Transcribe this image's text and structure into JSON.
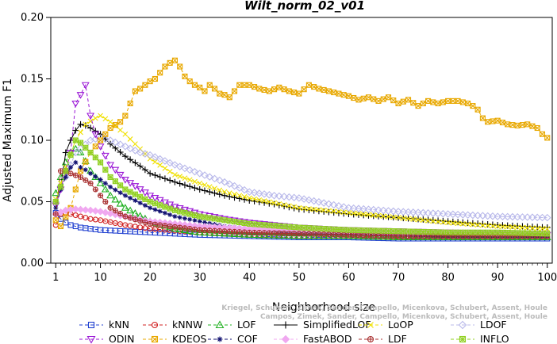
{
  "chart_data": {
    "type": "line",
    "title": "Wilt_norm_02_v01",
    "xlabel": "Neighborhood size",
    "ylabel": "Adjusted Maximum F1",
    "xlim": [
      0,
      101
    ],
    "ylim": [
      0,
      0.2
    ],
    "xticks": [
      1,
      10,
      20,
      30,
      40,
      50,
      60,
      70,
      80,
      90,
      100
    ],
    "yticks": [
      0.0,
      0.05,
      0.1,
      0.15,
      0.2
    ],
    "ytick_labels": [
      "0.00",
      "0.05",
      "0.10",
      "0.15",
      "0.20"
    ],
    "grid": false,
    "legend_position": "bottom",
    "watermark": [
      "Kriegel, Schubert, Zimek, Sander, Campello, Micenkova, Schubert, Assent, Houle",
      "Campos, Zimek, Sander, Campello, Micenkova, Schubert, Assent, Houle"
    ],
    "series": [
      {
        "name": "kNN",
        "color": "#1f3fd0",
        "marker": "square",
        "dash": "4,3",
        "points": [
          [
            1,
            0.041
          ],
          [
            2,
            0.036
          ],
          [
            3,
            0.033
          ],
          [
            4,
            0.031
          ],
          [
            5,
            0.03
          ],
          [
            6,
            0.029
          ],
          [
            8,
            0.028
          ],
          [
            10,
            0.027
          ],
          [
            15,
            0.026
          ],
          [
            20,
            0.025
          ],
          [
            30,
            0.023
          ],
          [
            40,
            0.022
          ],
          [
            50,
            0.021
          ],
          [
            60,
            0.021
          ],
          [
            70,
            0.02
          ],
          [
            80,
            0.02
          ],
          [
            90,
            0.02
          ],
          [
            100,
            0.02
          ]
        ]
      },
      {
        "name": "kNNW",
        "color": "#d02020",
        "marker": "circle",
        "dash": "4,3",
        "points": [
          [
            1,
            0.031
          ],
          [
            2,
            0.04
          ],
          [
            3,
            0.041
          ],
          [
            4,
            0.04
          ],
          [
            6,
            0.038
          ],
          [
            8,
            0.036
          ],
          [
            10,
            0.035
          ],
          [
            15,
            0.031
          ],
          [
            20,
            0.028
          ],
          [
            30,
            0.025
          ],
          [
            40,
            0.023
          ],
          [
            50,
            0.022
          ],
          [
            60,
            0.022
          ],
          [
            70,
            0.021
          ],
          [
            80,
            0.021
          ],
          [
            90,
            0.021
          ],
          [
            100,
            0.021
          ]
        ]
      },
      {
        "name": "LOF",
        "color": "#20b020",
        "marker": "triangle",
        "dash": "4,3",
        "points": [
          [
            1,
            0.057
          ],
          [
            2,
            0.07
          ],
          [
            3,
            0.082
          ],
          [
            4,
            0.09
          ],
          [
            5,
            0.093
          ],
          [
            6,
            0.09
          ],
          [
            7,
            0.083
          ],
          [
            8,
            0.075
          ],
          [
            10,
            0.065
          ],
          [
            12,
            0.055
          ],
          [
            15,
            0.045
          ],
          [
            20,
            0.034
          ],
          [
            25,
            0.028
          ],
          [
            30,
            0.025
          ],
          [
            40,
            0.023
          ],
          [
            50,
            0.022
          ],
          [
            60,
            0.022
          ],
          [
            70,
            0.021
          ],
          [
            80,
            0.021
          ],
          [
            90,
            0.021
          ],
          [
            100,
            0.021
          ]
        ]
      },
      {
        "name": "SimplifiedLOF",
        "color": "#000000",
        "marker": "plus",
        "dash": "",
        "points": [
          [
            1,
            0.05
          ],
          [
            2,
            0.062
          ],
          [
            3,
            0.09
          ],
          [
            4,
            0.1
          ],
          [
            5,
            0.108
          ],
          [
            6,
            0.113
          ],
          [
            7,
            0.112
          ],
          [
            8,
            0.11
          ],
          [
            10,
            0.105
          ],
          [
            12,
            0.097
          ],
          [
            15,
            0.087
          ],
          [
            18,
            0.079
          ],
          [
            20,
            0.073
          ],
          [
            25,
            0.066
          ],
          [
            30,
            0.06
          ],
          [
            35,
            0.055
          ],
          [
            40,
            0.051
          ],
          [
            45,
            0.048
          ],
          [
            50,
            0.044
          ],
          [
            60,
            0.04
          ],
          [
            70,
            0.037
          ],
          [
            80,
            0.034
          ],
          [
            90,
            0.031
          ],
          [
            100,
            0.029
          ]
        ]
      },
      {
        "name": "LoOP",
        "color": "#f0e000",
        "marker": "x",
        "dash": "4,3",
        "points": [
          [
            1,
            0.052
          ],
          [
            3,
            0.078
          ],
          [
            5,
            0.1
          ],
          [
            7,
            0.113
          ],
          [
            9,
            0.118
          ],
          [
            10,
            0.12
          ],
          [
            12,
            0.115
          ],
          [
            15,
            0.105
          ],
          [
            18,
            0.093
          ],
          [
            20,
            0.085
          ],
          [
            25,
            0.072
          ],
          [
            30,
            0.065
          ],
          [
            35,
            0.058
          ],
          [
            40,
            0.053
          ],
          [
            45,
            0.049
          ],
          [
            50,
            0.045
          ],
          [
            60,
            0.041
          ],
          [
            70,
            0.037
          ],
          [
            80,
            0.033
          ],
          [
            90,
            0.03
          ],
          [
            100,
            0.028
          ]
        ]
      },
      {
        "name": "LDOF",
        "color": "#b8b8ea",
        "marker": "diamond",
        "dash": "4,3",
        "points": [
          [
            1,
            0.05
          ],
          [
            3,
            0.07
          ],
          [
            5,
            0.09
          ],
          [
            8,
            0.1
          ],
          [
            10,
            0.102
          ],
          [
            12,
            0.1
          ],
          [
            15,
            0.095
          ],
          [
            18,
            0.09
          ],
          [
            20,
            0.088
          ],
          [
            25,
            0.08
          ],
          [
            30,
            0.073
          ],
          [
            35,
            0.066
          ],
          [
            40,
            0.058
          ],
          [
            45,
            0.055
          ],
          [
            50,
            0.053
          ],
          [
            60,
            0.045
          ],
          [
            70,
            0.042
          ],
          [
            80,
            0.04
          ],
          [
            90,
            0.038
          ],
          [
            100,
            0.037
          ]
        ]
      },
      {
        "name": "ODIN",
        "color": "#9b19d6",
        "marker": "triangle-down",
        "dash": "4,3",
        "points": [
          [
            1,
            0.047
          ],
          [
            2,
            0.06
          ],
          [
            3,
            0.075
          ],
          [
            4,
            0.09
          ],
          [
            5,
            0.13
          ],
          [
            6,
            0.137
          ],
          [
            7,
            0.145
          ],
          [
            8,
            0.12
          ],
          [
            9,
            0.105
          ],
          [
            10,
            0.095
          ],
          [
            12,
            0.08
          ],
          [
            15,
            0.068
          ],
          [
            20,
            0.055
          ],
          [
            25,
            0.046
          ],
          [
            30,
            0.04
          ],
          [
            35,
            0.036
          ],
          [
            40,
            0.033
          ],
          [
            50,
            0.029
          ],
          [
            60,
            0.027
          ],
          [
            70,
            0.026
          ],
          [
            80,
            0.025
          ],
          [
            90,
            0.024
          ],
          [
            100,
            0.023
          ]
        ]
      },
      {
        "name": "KDEOS",
        "color": "#e8a800",
        "marker": "box-x",
        "dash": "4,3",
        "points": [
          [
            1,
            0.035
          ],
          [
            2,
            0.03
          ],
          [
            4,
            0.045
          ],
          [
            6,
            0.075
          ],
          [
            8,
            0.09
          ],
          [
            10,
            0.1
          ],
          [
            12,
            0.11
          ],
          [
            14,
            0.115
          ],
          [
            15,
            0.12
          ],
          [
            16,
            0.13
          ],
          [
            17,
            0.14
          ],
          [
            18,
            0.142
          ],
          [
            19,
            0.145
          ],
          [
            20,
            0.148
          ],
          [
            21,
            0.15
          ],
          [
            22,
            0.155
          ],
          [
            23,
            0.16
          ],
          [
            24,
            0.163
          ],
          [
            25,
            0.165
          ],
          [
            26,
            0.16
          ],
          [
            27,
            0.152
          ],
          [
            28,
            0.148
          ],
          [
            29,
            0.145
          ],
          [
            30,
            0.143
          ],
          [
            31,
            0.14
          ],
          [
            32,
            0.145
          ],
          [
            33,
            0.142
          ],
          [
            34,
            0.138
          ],
          [
            35,
            0.137
          ],
          [
            36,
            0.135
          ],
          [
            38,
            0.145
          ],
          [
            40,
            0.145
          ],
          [
            42,
            0.142
          ],
          [
            44,
            0.14
          ],
          [
            46,
            0.143
          ],
          [
            48,
            0.14
          ],
          [
            50,
            0.138
          ],
          [
            52,
            0.145
          ],
          [
            54,
            0.142
          ],
          [
            56,
            0.14
          ],
          [
            58,
            0.138
          ],
          [
            60,
            0.136
          ],
          [
            62,
            0.133
          ],
          [
            64,
            0.135
          ],
          [
            66,
            0.132
          ],
          [
            68,
            0.135
          ],
          [
            70,
            0.13
          ],
          [
            72,
            0.133
          ],
          [
            74,
            0.128
          ],
          [
            76,
            0.132
          ],
          [
            78,
            0.13
          ],
          [
            80,
            0.132
          ],
          [
            82,
            0.132
          ],
          [
            84,
            0.13
          ],
          [
            85,
            0.128
          ],
          [
            86,
            0.125
          ],
          [
            87,
            0.118
          ],
          [
            88,
            0.115
          ],
          [
            90,
            0.116
          ],
          [
            92,
            0.113
          ],
          [
            94,
            0.112
          ],
          [
            96,
            0.113
          ],
          [
            98,
            0.11
          ],
          [
            99,
            0.105
          ],
          [
            100,
            0.102
          ]
        ]
      },
      {
        "name": "COF",
        "color": "#101070",
        "marker": "star",
        "dash": "4,3",
        "points": [
          [
            1,
            0.045
          ],
          [
            2,
            0.06
          ],
          [
            3,
            0.07
          ],
          [
            4,
            0.078
          ],
          [
            5,
            0.082
          ],
          [
            6,
            0.078
          ],
          [
            7,
            0.076
          ],
          [
            8,
            0.073
          ],
          [
            10,
            0.068
          ],
          [
            12,
            0.062
          ],
          [
            15,
            0.055
          ],
          [
            20,
            0.045
          ],
          [
            25,
            0.038
          ],
          [
            30,
            0.034
          ],
          [
            35,
            0.03
          ],
          [
            40,
            0.028
          ],
          [
            50,
            0.025
          ],
          [
            60,
            0.024
          ],
          [
            70,
            0.023
          ],
          [
            80,
            0.022
          ],
          [
            90,
            0.022
          ],
          [
            100,
            0.022
          ]
        ]
      },
      {
        "name": "FastABOD",
        "color": "#f0a8f0",
        "marker": "diamond-filled",
        "dash": "4,3",
        "points": [
          [
            1,
            0.04
          ],
          [
            3,
            0.043
          ],
          [
            5,
            0.044
          ],
          [
            8,
            0.043
          ],
          [
            10,
            0.042
          ],
          [
            15,
            0.038
          ],
          [
            20,
            0.034
          ],
          [
            30,
            0.03
          ],
          [
            40,
            0.028
          ],
          [
            50,
            0.027
          ],
          [
            60,
            0.026
          ],
          [
            70,
            0.025
          ],
          [
            80,
            0.025
          ],
          [
            90,
            0.024
          ],
          [
            100,
            0.024
          ]
        ]
      },
      {
        "name": "LDF",
        "color": "#a83030",
        "marker": "circle-plus",
        "dash": "4,3",
        "points": [
          [
            1,
            0.04
          ],
          [
            2,
            0.075
          ],
          [
            3,
            0.075
          ],
          [
            4,
            0.073
          ],
          [
            6,
            0.07
          ],
          [
            8,
            0.065
          ],
          [
            10,
            0.055
          ],
          [
            12,
            0.045
          ],
          [
            15,
            0.038
          ],
          [
            20,
            0.032
          ],
          [
            30,
            0.027
          ],
          [
            40,
            0.025
          ],
          [
            50,
            0.024
          ],
          [
            60,
            0.023
          ],
          [
            70,
            0.022
          ],
          [
            80,
            0.022
          ],
          [
            90,
            0.022
          ],
          [
            100,
            0.022
          ]
        ]
      },
      {
        "name": "INFLO",
        "color": "#90d020",
        "marker": "box-star",
        "dash": "4,3",
        "points": [
          [
            1,
            0.05
          ],
          [
            2,
            0.062
          ],
          [
            3,
            0.075
          ],
          [
            4,
            0.088
          ],
          [
            5,
            0.1
          ],
          [
            6,
            0.098
          ],
          [
            8,
            0.09
          ],
          [
            10,
            0.082
          ],
          [
            12,
            0.07
          ],
          [
            15,
            0.06
          ],
          [
            20,
            0.05
          ],
          [
            25,
            0.043
          ],
          [
            30,
            0.038
          ],
          [
            35,
            0.035
          ],
          [
            40,
            0.032
          ],
          [
            50,
            0.029
          ],
          [
            60,
            0.027
          ],
          [
            70,
            0.026
          ],
          [
            80,
            0.025
          ],
          [
            90,
            0.025
          ],
          [
            100,
            0.024
          ]
        ]
      }
    ]
  }
}
